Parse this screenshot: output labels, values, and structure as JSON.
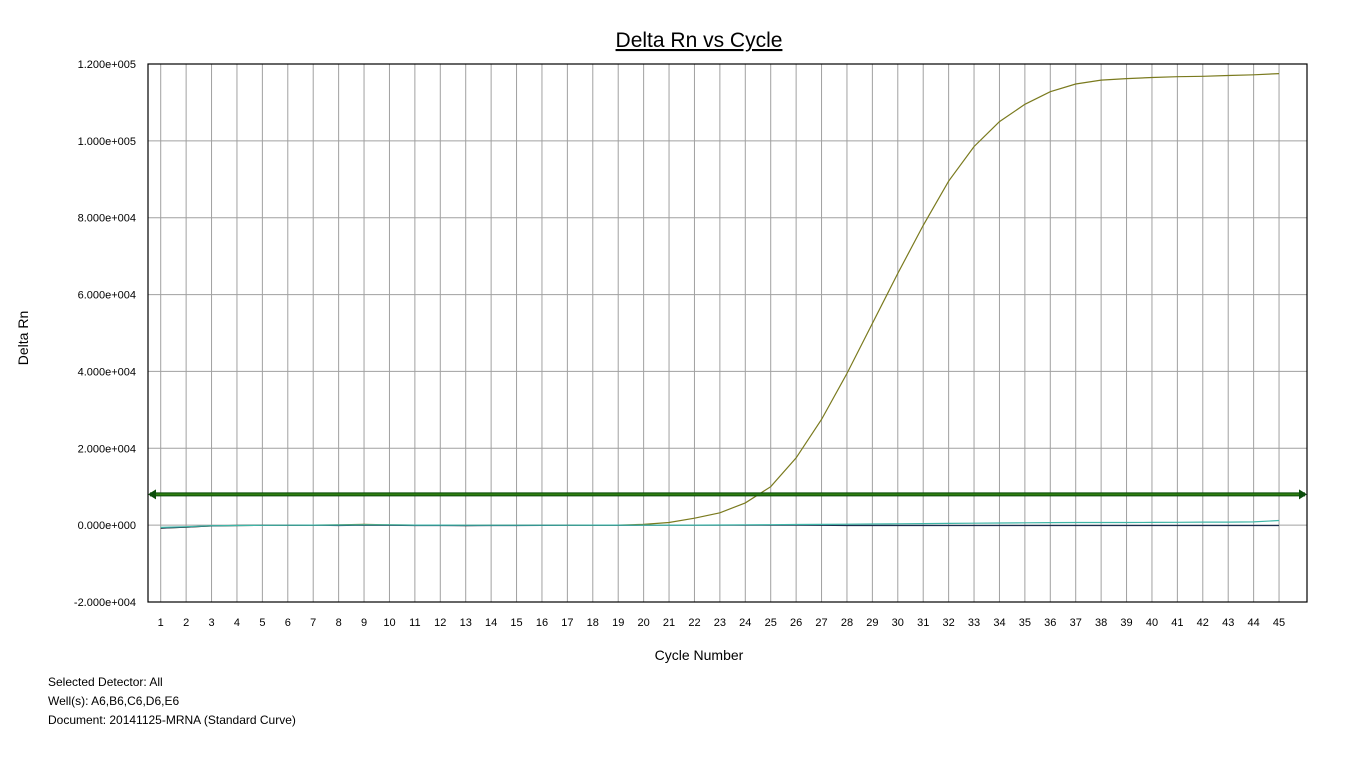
{
  "chart_data": {
    "type": "line",
    "title": "Delta Rn vs Cycle",
    "xlabel": "Cycle Number",
    "ylabel": "Delta Rn",
    "x": [
      1,
      2,
      3,
      4,
      5,
      6,
      7,
      8,
      9,
      10,
      11,
      12,
      13,
      14,
      15,
      16,
      17,
      18,
      19,
      20,
      21,
      22,
      23,
      24,
      25,
      26,
      27,
      28,
      29,
      30,
      31,
      32,
      33,
      34,
      35,
      36,
      37,
      38,
      39,
      40,
      41,
      42,
      43,
      44,
      45
    ],
    "xlim": [
      0.5,
      46.1
    ],
    "ylim": [
      -20000,
      120000
    ],
    "yticks": [
      -20000,
      0,
      20000,
      40000,
      60000,
      80000,
      100000,
      120000
    ],
    "ytick_labels": [
      "-2.000e+004",
      "0.000e+000",
      "2.000e+004",
      "4.000e+004",
      "6.000e+004",
      "8.000e+004",
      "1.000e+005",
      "1.200e+005"
    ],
    "grid": true,
    "threshold": 8000,
    "colors": {
      "grid": "#a0a0a0",
      "threshold": "#2e7d10",
      "threshold_outline": "#0b4d0b"
    },
    "series": [
      {
        "color": "#7a7a1e",
        "values": [
          -800,
          -500,
          -200,
          -100,
          -50,
          -30,
          0,
          100,
          200,
          100,
          0,
          -50,
          -80,
          -50,
          -30,
          -20,
          -10,
          -5,
          0,
          200,
          700,
          1800,
          3200,
          5800,
          10000,
          17500,
          27500,
          39500,
          52500,
          65500,
          78000,
          89500,
          98500,
          105000,
          109500,
          112800,
          114800,
          115800,
          116200,
          116500,
          116700,
          116800,
          117000,
          117200,
          117500
        ]
      },
      {
        "color": "#1c2f4f",
        "values": [
          -800,
          -500,
          -200,
          -100,
          -50,
          -30,
          0,
          -100,
          0,
          -50,
          -100,
          -80,
          -150,
          -100,
          -80,
          -60,
          -50,
          -40,
          -30,
          -20,
          -10,
          0,
          0,
          0,
          0,
          -20,
          -50,
          -80,
          -100,
          -100,
          -100,
          -100,
          -100,
          -100,
          -100,
          -100,
          -100,
          -100,
          -100,
          -100,
          -100,
          -100,
          -100,
          -100,
          -100
        ]
      },
      {
        "color": "#3fb6a8",
        "values": [
          -600,
          -400,
          -150,
          -80,
          -40,
          -20,
          0,
          50,
          100,
          80,
          20,
          0,
          -20,
          -10,
          -10,
          -5,
          -5,
          0,
          0,
          0,
          0,
          20,
          40,
          80,
          120,
          160,
          200,
          250,
          300,
          350,
          400,
          450,
          500,
          550,
          600,
          650,
          700,
          700,
          700,
          720,
          750,
          780,
          800,
          850,
          1200
        ]
      }
    ]
  },
  "footer": {
    "detector": "Selected Detector: All",
    "wells": "Well(s): A6,B6,C6,D6,E6",
    "document": "Document: 20141125-MRNA (Standard Curve)"
  }
}
